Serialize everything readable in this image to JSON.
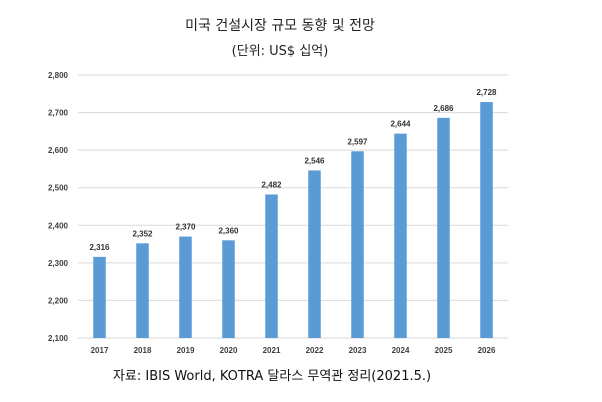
{
  "chart_data": {
    "type": "bar",
    "title": "미국 건설시장 규모 동향 및 전망",
    "subtitle": "(단위: US$ 십억)",
    "categories": [
      "2017",
      "2018",
      "2019",
      "2020",
      "2021",
      "2022",
      "2023",
      "2024",
      "2025",
      "2026"
    ],
    "values": [
      2316,
      2352,
      2370,
      2360,
      2482,
      2546,
      2597,
      2644,
      2686,
      2728
    ],
    "value_labels": [
      "2,316",
      "2,352",
      "2,370",
      "2,360",
      "2,482",
      "2,546",
      "2,597",
      "2,644",
      "2,686",
      "2,728"
    ],
    "y_ticks": [
      2100,
      2200,
      2300,
      2400,
      2500,
      2600,
      2700,
      2800
    ],
    "y_tick_labels": [
      "2,100",
      "2,200",
      "2,300",
      "2,400",
      "2,500",
      "2,600",
      "2,700",
      "2,800"
    ],
    "ylim": [
      2100,
      2800
    ],
    "grid": true,
    "bar_color": "#5b9bd5",
    "grid_color": "#d9d9d9"
  },
  "source": "자료: IBIS World, KOTRA 달라스 무역관 정리(2021.5.)"
}
